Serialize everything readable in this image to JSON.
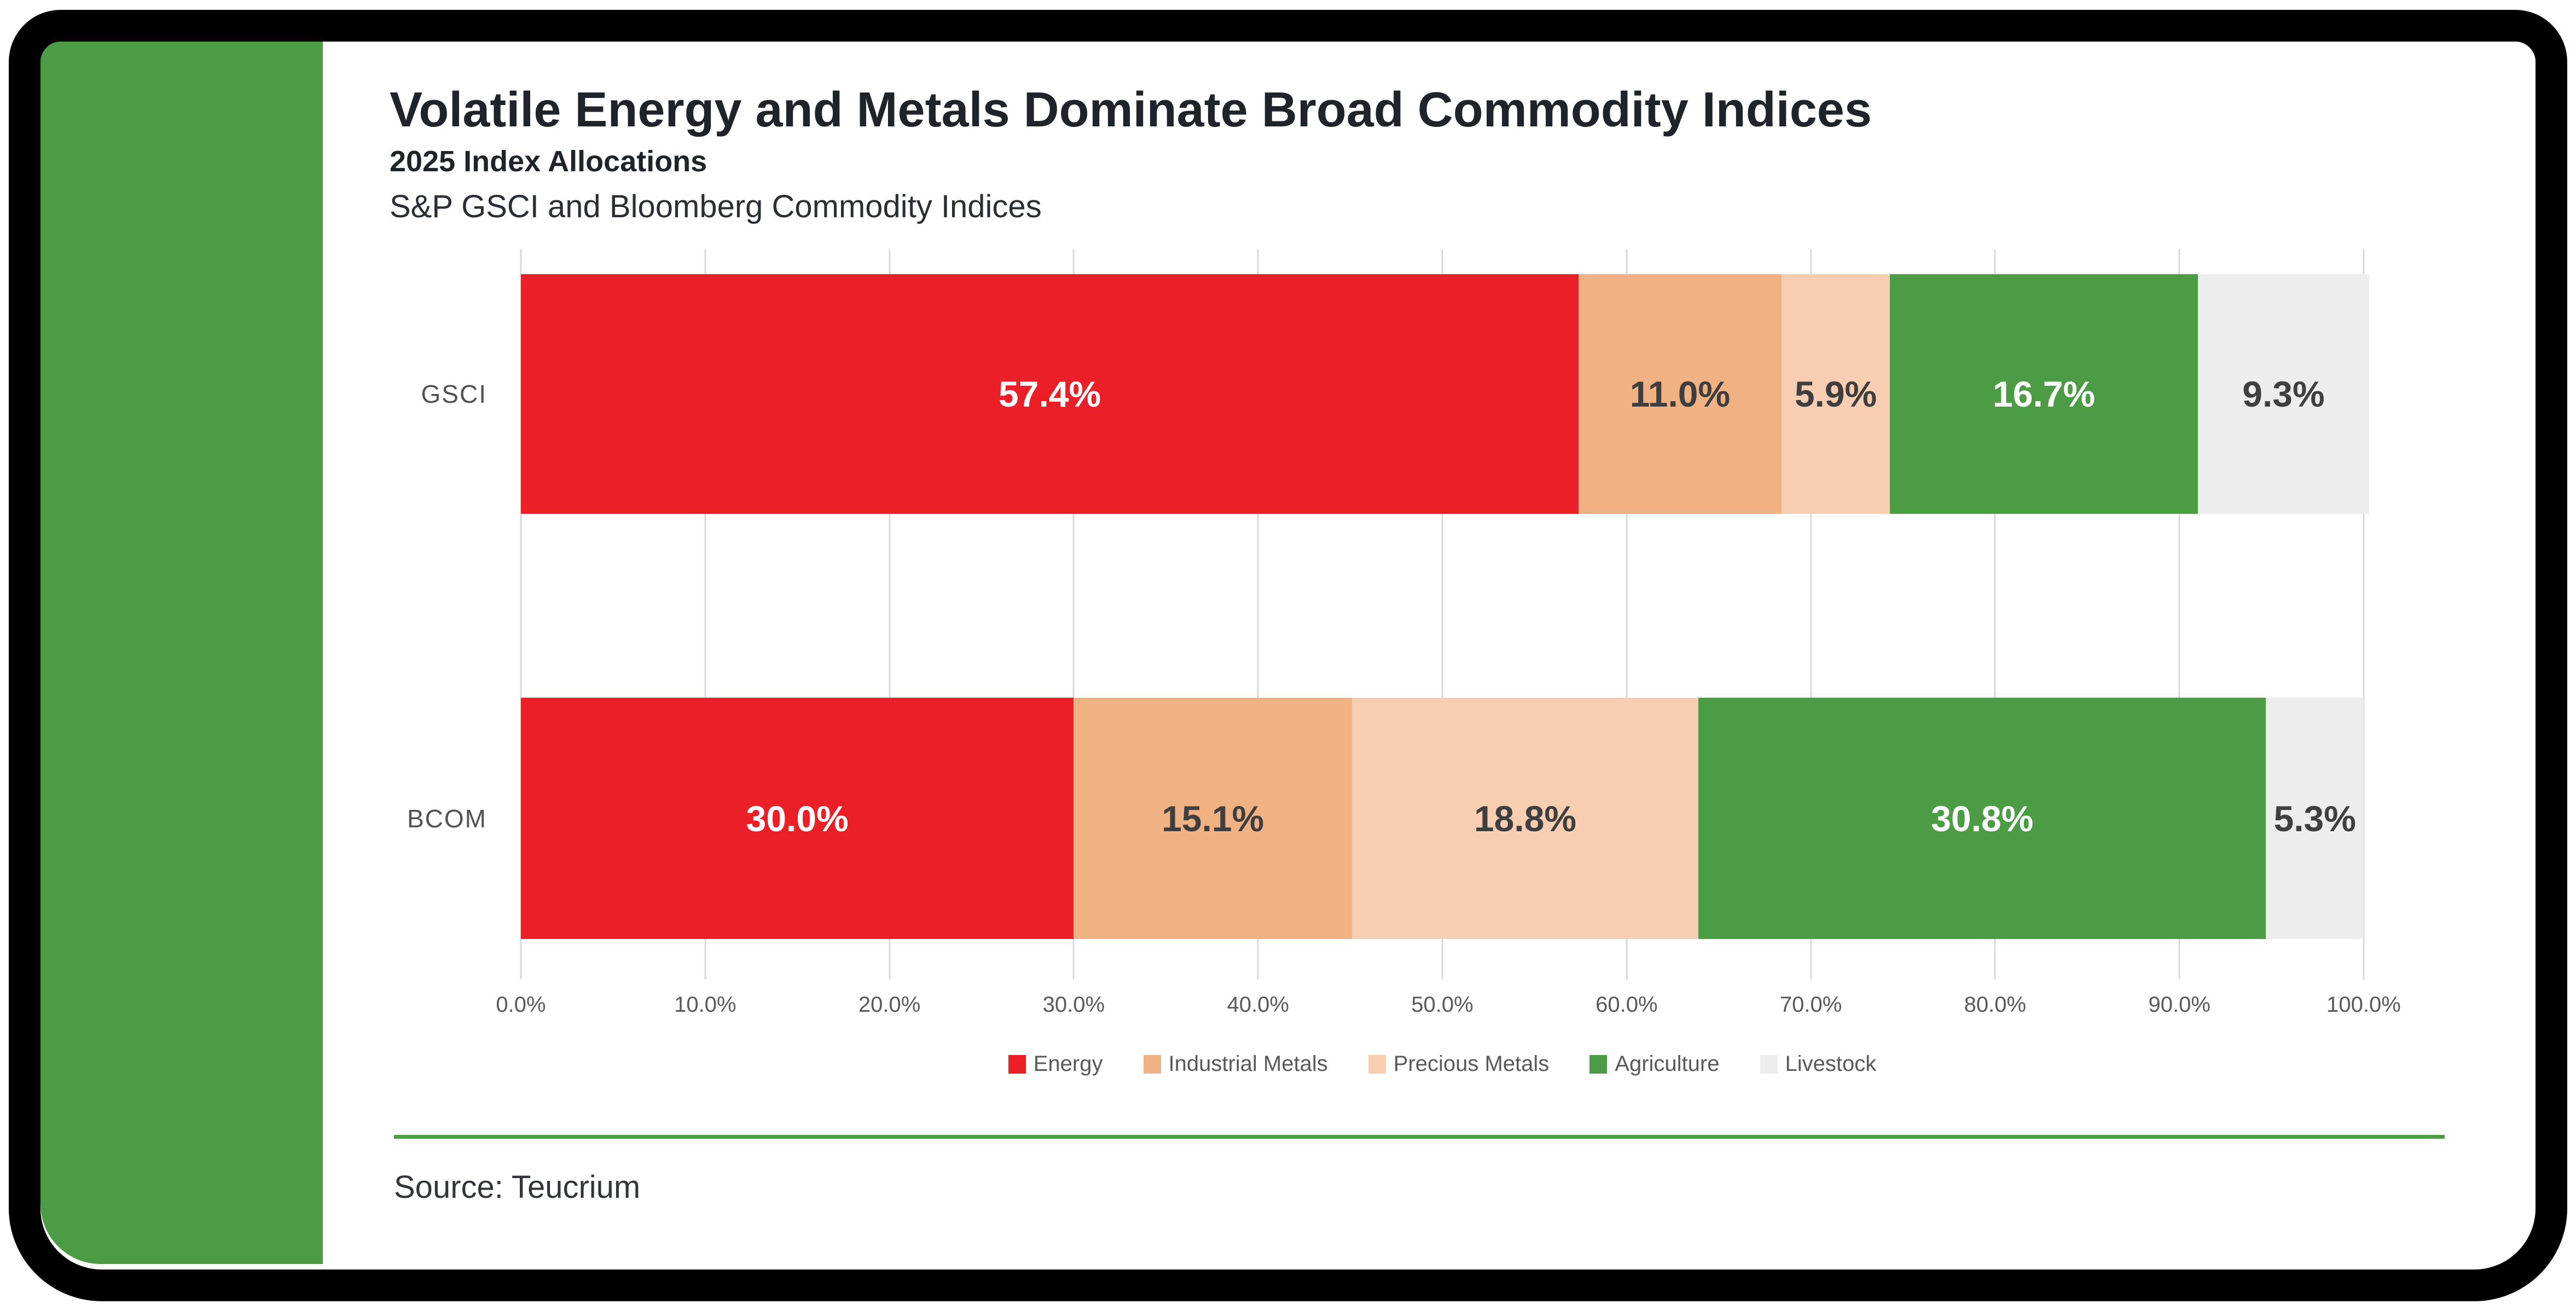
{
  "page": {
    "background": "#FFFFFF"
  },
  "frame": {
    "border_color": "#000000",
    "card_background": "#FFFFFF",
    "side_band_color": "#4C9B45"
  },
  "header": {
    "title": "Volatile Energy and Metals Dominate Broad Commodity Indices",
    "subtitle": "2025 Index Allocations",
    "description": "S&P GSCI and Bloomberg Commodity Indices"
  },
  "chart_data": {
    "type": "bar",
    "orientation": "horizontal",
    "stacked": true,
    "title": "Volatile Energy and Metals Dominate Broad Commodity Indices",
    "subtitle": "2025 Index Allocations",
    "axis_note": "S&P GSCI and Bloomberg Commodity Indices",
    "categories": [
      "GSCI",
      "BCOM"
    ],
    "series": [
      {
        "name": "Energy",
        "color": "#EA1F27",
        "label_color": "#FFFFFF",
        "values": [
          57.4,
          30.0
        ]
      },
      {
        "name": "Industrial Metals",
        "color": "#F0B183",
        "label_color": "#3F3F3F",
        "values": [
          11.0,
          15.1
        ]
      },
      {
        "name": "Precious Metals",
        "color": "#F7CEB2",
        "label_color": "#3F3F3F",
        "values": [
          5.9,
          18.8
        ]
      },
      {
        "name": "Agriculture",
        "color": "#4C9B45",
        "label_color": "#FFFFFF",
        "values": [
          16.7,
          30.8
        ]
      },
      {
        "name": "Livestock",
        "color": "#EDEDED",
        "label_color": "#3F3F3F",
        "values": [
          9.3,
          5.3
        ]
      }
    ],
    "x_ticks": [
      "0.0%",
      "10.0%",
      "20.0%",
      "30.0%",
      "40.0%",
      "50.0%",
      "60.0%",
      "70.0%",
      "80.0%",
      "90.0%",
      "100.0%"
    ],
    "xlim": [
      0,
      100
    ],
    "grid": true,
    "gridline_color": "#D9D9D9",
    "legend_position": "bottom",
    "value_suffix": "%",
    "value_decimals": 1
  },
  "footer": {
    "divider_color": "#4C9B45",
    "source": "Source: Teucrium"
  }
}
